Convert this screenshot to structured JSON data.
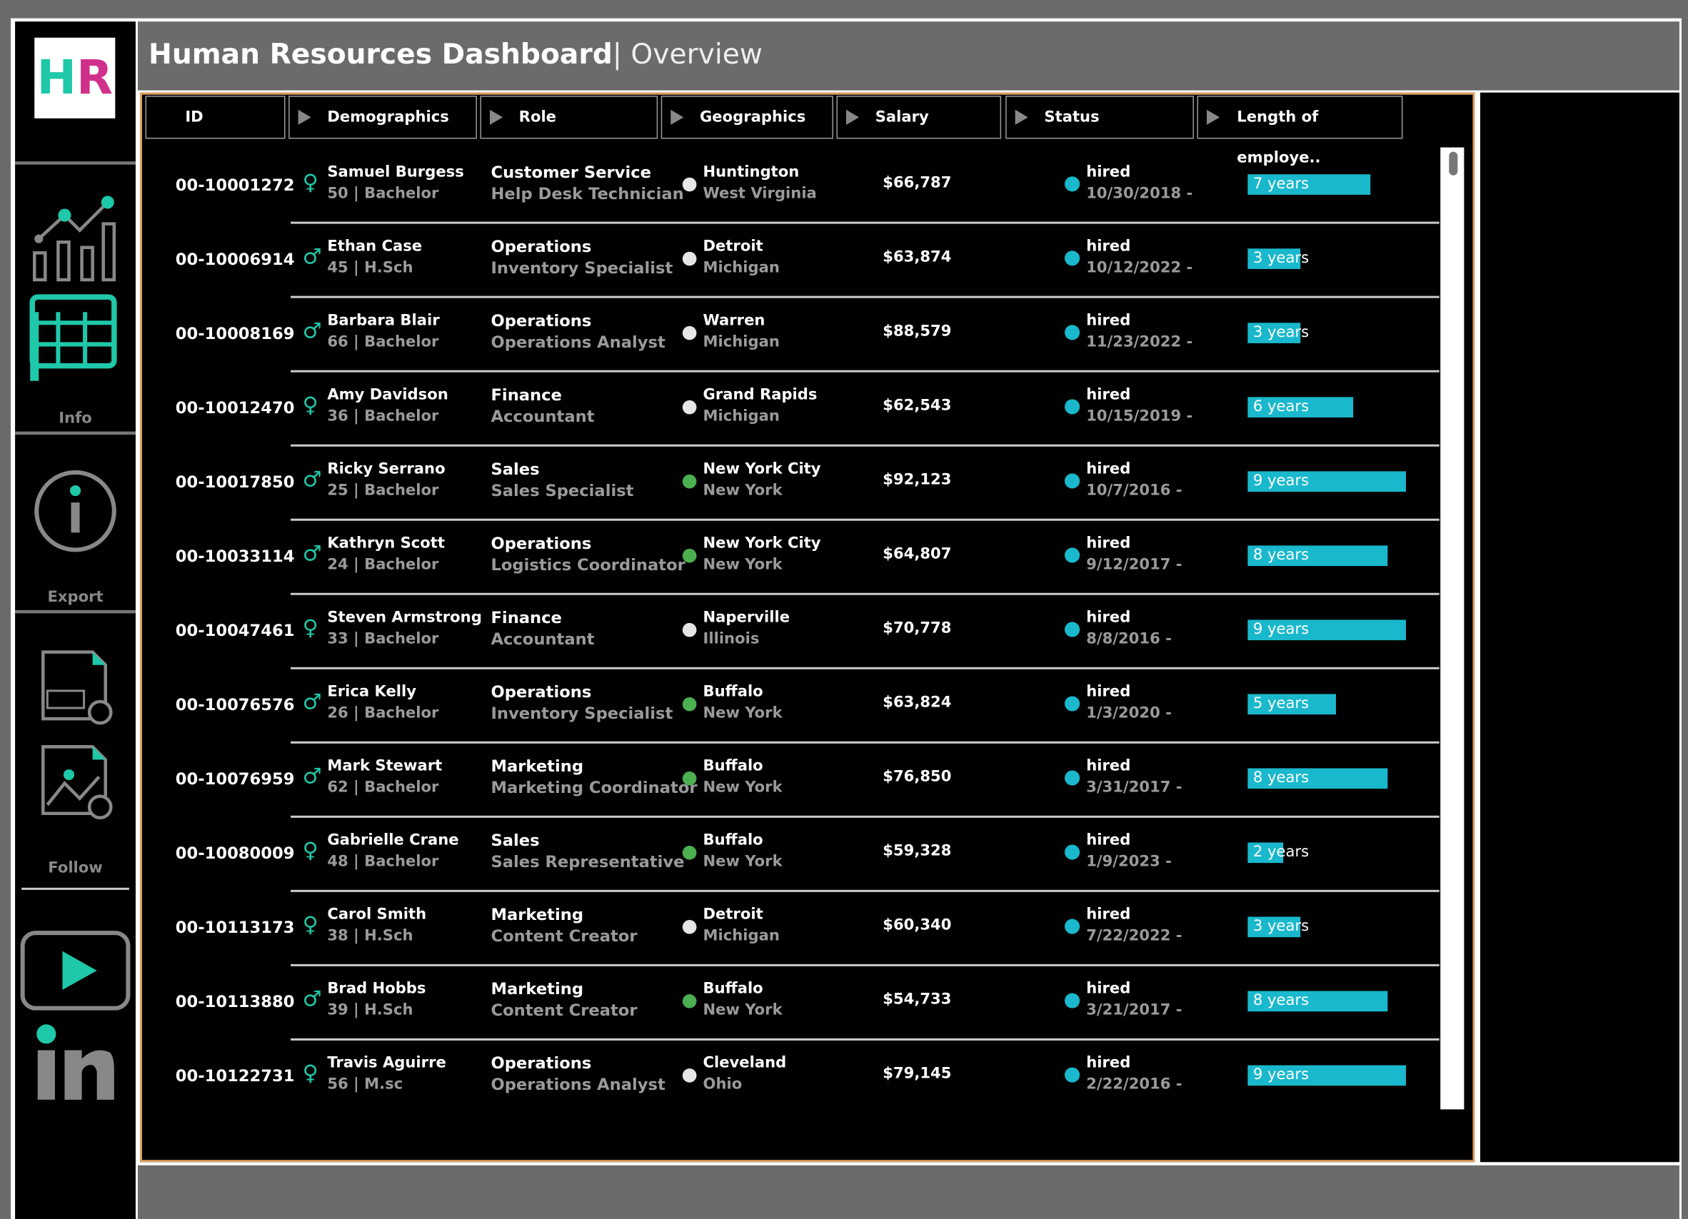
{
  "header": {
    "title": "Human Resources Dashboard",
    "subtitle": "| Overview",
    "logo": "HR"
  },
  "sidebar": {
    "info": "Info",
    "export": "Export",
    "follow": "Follow"
  },
  "table": {
    "columns": [
      "ID",
      "Demographics",
      "Role",
      "Geographics",
      "Salary",
      "Status",
      "Length of employe.."
    ],
    "bar_color": "#1ab8cc",
    "rows": [
      {
        "id": "00-10001272",
        "gender": "♀",
        "name": "Samuel Burgess",
        "demo": "50 | Bachelor",
        "dept": "Customer Service",
        "title": "Help Desk Technician",
        "city": "Huntington",
        "state": "West Virginia",
        "dot": "#e6e6e6",
        "salary": "$66,787",
        "status": "hired",
        "date": "10/30/2018 -",
        "years": 7,
        "years_label": "7 years"
      },
      {
        "id": "00-10006914",
        "gender": "♂",
        "name": "Ethan Case",
        "demo": "45 | H.Sch",
        "dept": "Operations",
        "title": "Inventory Specialist",
        "city": "Detroit",
        "state": "Michigan",
        "dot": "#e6e6e6",
        "salary": "$63,874",
        "status": "hired",
        "date": "10/12/2022 -",
        "years": 3,
        "years_label": "3 years"
      },
      {
        "id": "00-10008169",
        "gender": "♂",
        "name": "Barbara Blair",
        "demo": "66 | Bachelor",
        "dept": "Operations",
        "title": "Operations Analyst",
        "city": "Warren",
        "state": "Michigan",
        "dot": "#e6e6e6",
        "salary": "$88,579",
        "status": "hired",
        "date": "11/23/2022 -",
        "years": 3,
        "years_label": "3 years"
      },
      {
        "id": "00-10012470",
        "gender": "♀",
        "name": "Amy Davidson",
        "demo": "36 | Bachelor",
        "dept": "Finance",
        "title": "Accountant",
        "city": "Grand Rapids",
        "state": "Michigan",
        "dot": "#e6e6e6",
        "salary": "$62,543",
        "status": "hired",
        "date": "10/15/2019 -",
        "years": 6,
        "years_label": "6 years"
      },
      {
        "id": "00-10017850",
        "gender": "♂",
        "name": "Ricky Serrano",
        "demo": "25 | Bachelor",
        "dept": "Sales",
        "title": "Sales Specialist",
        "city": "New York City",
        "state": "New York",
        "dot": "#4caf50",
        "salary": "$92,123",
        "status": "hired",
        "date": "10/7/2016 -",
        "years": 9,
        "years_label": "9 years"
      },
      {
        "id": "00-10033114",
        "gender": "♂",
        "name": "Kathryn Scott",
        "demo": "24 | Bachelor",
        "dept": "Operations",
        "title": "Logistics Coordinator",
        "city": "New York City",
        "state": "New York",
        "dot": "#4caf50",
        "salary": "$64,807",
        "status": "hired",
        "date": "9/12/2017 -",
        "years": 8,
        "years_label": "8 years"
      },
      {
        "id": "00-10047461",
        "gender": "♀",
        "name": "Steven Armstrong",
        "demo": "33 | Bachelor",
        "dept": "Finance",
        "title": "Accountant",
        "city": "Naperville",
        "state": "Illinois",
        "dot": "#e6e6e6",
        "salary": "$70,778",
        "status": "hired",
        "date": "8/8/2016 -",
        "years": 9,
        "years_label": "9 years"
      },
      {
        "id": "00-10076576",
        "gender": "♂",
        "name": "Erica Kelly",
        "demo": "26 | Bachelor",
        "dept": "Operations",
        "title": "Inventory Specialist",
        "city": "Buffalo",
        "state": "New York",
        "dot": "#4caf50",
        "salary": "$63,824",
        "status": "hired",
        "date": "1/3/2020 -",
        "years": 5,
        "years_label": "5 years"
      },
      {
        "id": "00-10076959",
        "gender": "♂",
        "name": "Mark Stewart",
        "demo": "62 | Bachelor",
        "dept": "Marketing",
        "title": "Marketing Coordinator",
        "city": "Buffalo",
        "state": "New York",
        "dot": "#4caf50",
        "salary": "$76,850",
        "status": "hired",
        "date": "3/31/2017 -",
        "years": 8,
        "years_label": "8 years"
      },
      {
        "id": "00-10080009",
        "gender": "♀",
        "name": "Gabrielle Crane",
        "demo": "48 | Bachelor",
        "dept": "Sales",
        "title": "Sales Representative",
        "city": "Buffalo",
        "state": "New York",
        "dot": "#4caf50",
        "salary": "$59,328",
        "status": "hired",
        "date": "1/9/2023 -",
        "years": 2,
        "years_label": "2 years"
      },
      {
        "id": "00-10113173",
        "gender": "♀",
        "name": "Carol Smith",
        "demo": "38 | H.Sch",
        "dept": "Marketing",
        "title": "Content Creator",
        "city": "Detroit",
        "state": "Michigan",
        "dot": "#e6e6e6",
        "salary": "$60,340",
        "status": "hired",
        "date": "7/22/2022 -",
        "years": 3,
        "years_label": "3 years"
      },
      {
        "id": "00-10113880",
        "gender": "♂",
        "name": "Brad Hobbs",
        "demo": "39 | H.Sch",
        "dept": "Marketing",
        "title": "Content Creator",
        "city": "Buffalo",
        "state": "New York",
        "dot": "#4caf50",
        "salary": "$54,733",
        "status": "hired",
        "date": "3/21/2017 -",
        "years": 8,
        "years_label": "8 years"
      },
      {
        "id": "00-10122731",
        "gender": "♀",
        "name": "Travis Aguirre",
        "demo": "56 | M.sc",
        "dept": "Operations",
        "title": "Operations Analyst",
        "city": "Cleveland",
        "state": "Ohio",
        "dot": "#e6e6e6",
        "salary": "$79,145",
        "status": "hired",
        "date": "2/22/2016 -",
        "years": 9,
        "years_label": "9 years"
      }
    ]
  }
}
